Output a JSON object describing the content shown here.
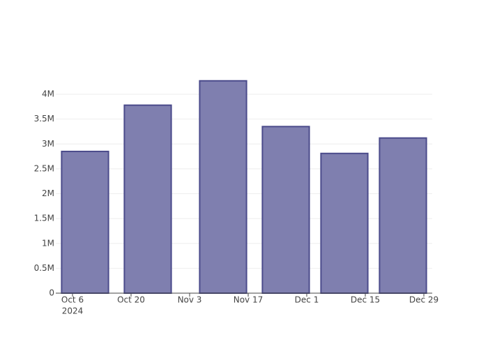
{
  "chart_data": {
    "type": "bar",
    "x": [
      "2024-10-09",
      "2024-10-24",
      "2024-11-11",
      "2024-11-26",
      "2024-12-10",
      "2024-12-24"
    ],
    "values": [
      2850000,
      3780000,
      4270000,
      3350000,
      2810000,
      3120000
    ],
    "color": "#7f7faf",
    "line_color": "#4b4b8b",
    "xlim": [
      "2024-10-02",
      "2024-12-31"
    ],
    "xticks": [
      {
        "value": "2024-10-06",
        "label": "Oct 6"
      },
      {
        "value": "2024-10-20",
        "label": "Oct 20"
      },
      {
        "value": "2024-11-03",
        "label": "Nov 3"
      },
      {
        "value": "2024-11-17",
        "label": "Nov 17"
      },
      {
        "value": "2024-12-01",
        "label": "Dec 1"
      },
      {
        "value": "2024-12-15",
        "label": "Dec 15"
      },
      {
        "value": "2024-12-29",
        "label": "Dec 29"
      }
    ],
    "xtick_year": "2024",
    "ylim": [
      0,
      4491228
    ],
    "yticks": [
      0,
      {
        "value": 500000,
        "label": "0.5M"
      },
      {
        "value": 1000000,
        "label": "1M"
      },
      {
        "value": 1500000,
        "label": "1.5M"
      },
      {
        "value": 2000000,
        "label": "2M"
      },
      {
        "value": 2500000,
        "label": "2.5M"
      },
      {
        "value": 3000000,
        "label": "3M"
      },
      {
        "value": 3500000,
        "label": "3.5M"
      },
      {
        "value": 4000000,
        "label": "4M"
      }
    ],
    "grid": true
  }
}
